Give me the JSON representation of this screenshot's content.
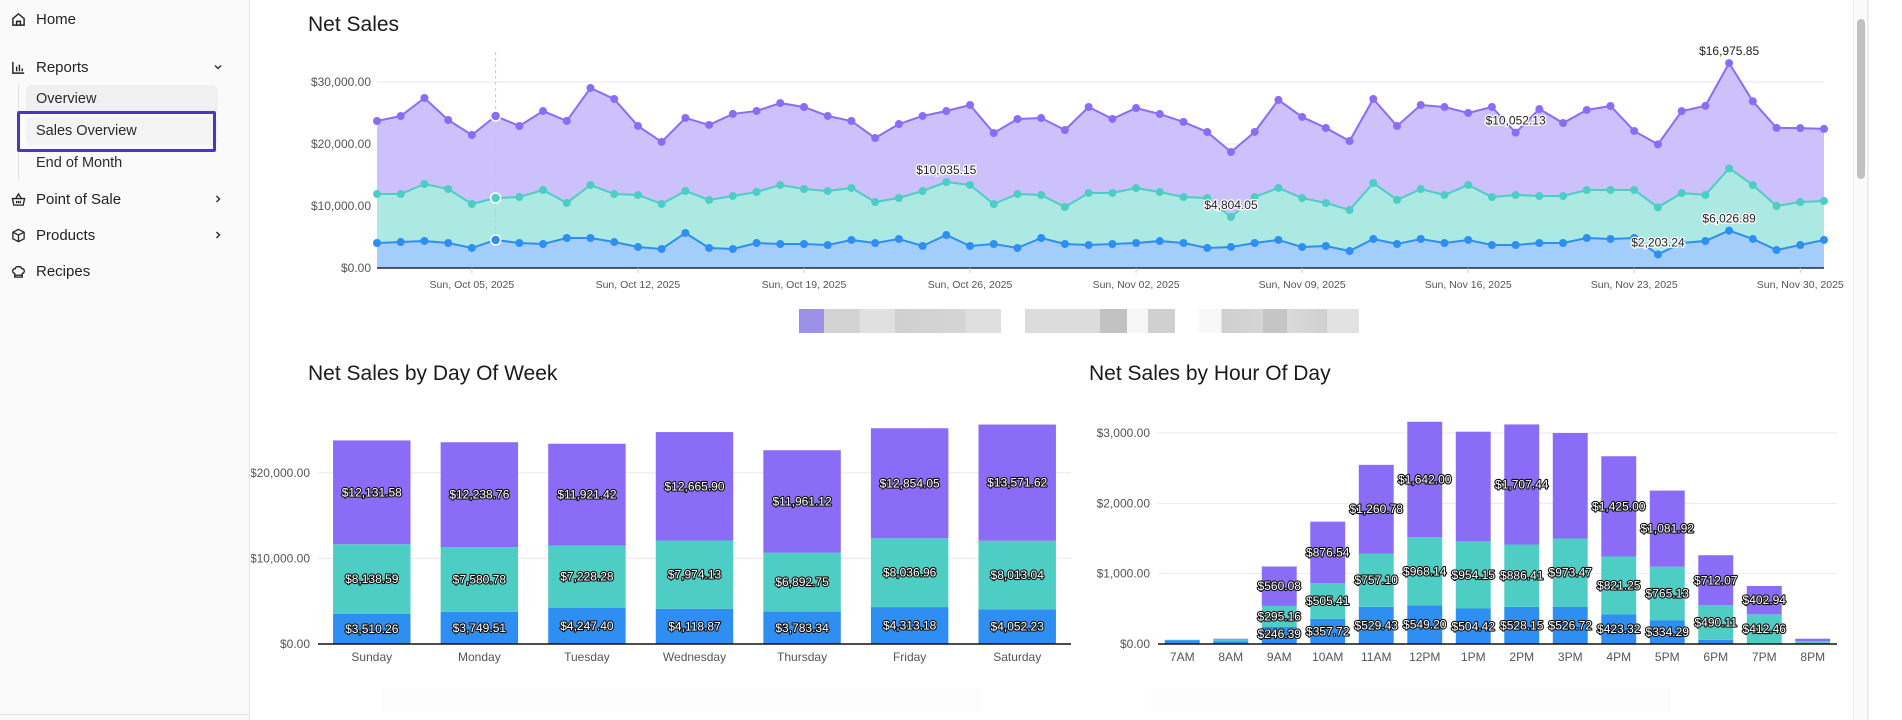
{
  "sidebar": {
    "items": [
      {
        "label": "Home",
        "icon": "home-icon"
      },
      {
        "label": "Reports",
        "icon": "bar-chart-icon",
        "expanded": true,
        "children": [
          {
            "label": "Overview"
          },
          {
            "label": "Sales Overview",
            "active": true
          },
          {
            "label": "End of Month"
          }
        ]
      },
      {
        "label": "Point of Sale",
        "icon": "basket-icon"
      },
      {
        "label": "Products",
        "icon": "box-icon"
      },
      {
        "label": "Recipes",
        "icon": "chef-hat-icon"
      }
    ]
  },
  "colors": {
    "purple": "#8b6cf6",
    "purple_fill": "#cdc1fb",
    "teal": "#4ecdc4",
    "teal_fill": "#ace9e3",
    "blue": "#2f8ef2",
    "blue_fill": "#a3cdfa",
    "highlight": "#4a35c4"
  },
  "chart_data": [
    {
      "id": "net-sales",
      "type": "area",
      "stacked": true,
      "title": "Net Sales",
      "xlabel": "",
      "ylabel": "",
      "ylim": [
        0,
        35000
      ],
      "yticks": [
        "$0.00",
        "$10,000.00",
        "$20,000.00",
        "$30,000.00"
      ],
      "ytick_values": [
        0,
        10000,
        20000,
        30000
      ],
      "xticks": [
        "Sun, Oct 05, 2025",
        "Sun, Oct 12, 2025",
        "Sun, Oct 19, 2025",
        "Sun, Oct 26, 2025",
        "Sun, Nov 02, 2025",
        "Sun, Nov 09, 2025",
        "Sun, Nov 16, 2025",
        "Sun, Nov 23, 2025",
        "Sun, Nov 30, 2025"
      ],
      "xtick_index": [
        4,
        11,
        18,
        25,
        32,
        39,
        46,
        53,
        60
      ],
      "x_start": "2025-10-01",
      "x_end": "2025-12-01",
      "grid": true,
      "hover_index": 5,
      "series": [
        {
          "name": "Series 1",
          "color": "blue",
          "values": [
            4030,
            4190,
            4360,
            4030,
            3230,
            4520,
            4030,
            3870,
            4840,
            4840,
            4190,
            3390,
            3070,
            5650,
            3230,
            3070,
            4030,
            3870,
            3870,
            3710,
            4520,
            4030,
            4680,
            3550,
            5320,
            3550,
            3870,
            3230,
            4840,
            3870,
            3710,
            3870,
            4030,
            4350,
            4030,
            3230,
            3390,
            4030,
            4520,
            3390,
            3550,
            2740,
            4680,
            3870,
            4680,
            4030,
            4520,
            3710,
            3710,
            4030,
            4030,
            4840,
            4680,
            4840,
            2200,
            4030,
            4360,
            6030,
            4680,
            2900,
            3710,
            4520
          ]
        },
        {
          "name": "Series 2",
          "color": "teal",
          "values": [
            7900,
            7740,
            9190,
            8710,
            7090,
            6770,
            7420,
            8710,
            5650,
            8550,
            7740,
            8390,
            7260,
            6770,
            7740,
            8550,
            8230,
            9510,
            8870,
            8710,
            8390,
            6610,
            6610,
            8870,
            8550,
            9840,
            6450,
            8710,
            6940,
            5970,
            8390,
            8230,
            8870,
            7900,
            7420,
            8070,
            4840,
            7420,
            8390,
            7900,
            6940,
            6610,
            9030,
            7100,
            8060,
            7740,
            8870,
            7740,
            8060,
            7580,
            7580,
            7740,
            7900,
            7740,
            7580,
            8060,
            7420,
            10040,
            8710,
            7100,
            6930,
            6290
          ]
        },
        {
          "name": "Series 3",
          "color": "purple",
          "values": [
            11780,
            12580,
            13870,
            11130,
            11130,
            13220,
            11450,
            12740,
            13230,
            15650,
            15320,
            11130,
            10000,
            11780,
            12100,
            13230,
            13070,
            13220,
            13230,
            12100,
            10800,
            10320,
            11930,
            12100,
            11450,
            12900,
            11450,
            12090,
            12410,
            12410,
            13870,
            11940,
            12900,
            12580,
            12110,
            10630,
            10480,
            10490,
            14200,
            13070,
            12100,
            11130,
            13550,
            11930,
            13550,
            14190,
            11620,
            14520,
            10060,
            14030,
            11770,
            12910,
            13550,
            9520,
            10160,
            13210,
            14370,
            16980,
            13500,
            12600,
            11930,
            11620
          ]
        }
      ],
      "data_labels": [
        {
          "series": "Series 2",
          "index": 24,
          "text": "$10,035.15"
        },
        {
          "series": "Series 2",
          "index": 36,
          "text": "$4,804.05"
        },
        {
          "series": "Series 3",
          "index": 48,
          "text": "$10,052.13"
        },
        {
          "series": "Series 1",
          "index": 54,
          "text": "$2,203.24"
        },
        {
          "series": "Series 3",
          "index": 57,
          "text": "$16,975.85"
        },
        {
          "series": "Series 1",
          "index": 57,
          "text": "$6,026.89"
        }
      ],
      "legend": {
        "placement": "bottom-center",
        "redacted": true
      }
    },
    {
      "id": "net-sales-by-day-of-week",
      "type": "bar",
      "stacked": true,
      "title": "Net Sales by Day Of Week",
      "xlabel": "",
      "ylabel": "",
      "ylim": [
        0,
        25000
      ],
      "yticks": [
        "$0.00",
        "$10,000.00",
        "$20,000.00"
      ],
      "ytick_values": [
        0,
        10000,
        20000
      ],
      "categories": [
        "Sunday",
        "Monday",
        "Tuesday",
        "Wednesday",
        "Thursday",
        "Friday",
        "Saturday"
      ],
      "grid": true,
      "series": [
        {
          "name": "Series 1",
          "color": "blue",
          "values": [
            3510.26,
            3749.51,
            4247.4,
            4118.87,
            3783.34,
            4313.18,
            4052.23
          ],
          "labels": [
            "$3,510.26",
            "$3,749.51",
            "$4,247.40",
            "$4,118.87",
            "$3,783.34",
            "$4,313.18",
            "$4,052.23"
          ]
        },
        {
          "name": "Series 2",
          "color": "teal",
          "values": [
            8138.59,
            7580.78,
            7228.28,
            7974.13,
            6892.75,
            8036.96,
            8013.04
          ],
          "labels": [
            "$8,138.59",
            "$7,580.78",
            "$7,228.28",
            "$7,974.13",
            "$6,892.75",
            "$8,036.96",
            "$8,013.04"
          ]
        },
        {
          "name": "Series 3",
          "color": "purple",
          "values": [
            12131.58,
            12238.76,
            11921.42,
            12665.9,
            11961.12,
            12854.05,
            13571.62
          ],
          "labels": [
            "$12,131.58",
            "$12,238.76",
            "$11,921.42",
            "$12,665.90",
            "$11,961.12",
            "$12,854.05",
            "$13,571.62"
          ]
        }
      ],
      "legend": {
        "placement": "bottom-center",
        "redacted": true
      }
    },
    {
      "id": "net-sales-by-hour-of-day",
      "type": "bar",
      "stacked": true,
      "title": "Net Sales by Hour Of Day",
      "xlabel": "",
      "ylabel": "",
      "ylim": [
        0,
        3100
      ],
      "yticks": [
        "$0.00",
        "$1,000.00",
        "$2,000.00",
        "$3,000.00"
      ],
      "ytick_values": [
        0,
        1000,
        2000,
        3000
      ],
      "categories": [
        "7AM",
        "8AM",
        "9AM",
        "10AM",
        "11AM",
        "12PM",
        "1PM",
        "2PM",
        "3PM",
        "4PM",
        "5PM",
        "6PM",
        "7PM",
        "8PM"
      ],
      "grid": true,
      "series": [
        {
          "name": "Series 1",
          "color": "blue",
          "values": [
            55,
            40,
            246.39,
            357.72,
            529.43,
            549.2,
            504.42,
            528.15,
            526.72,
            423.32,
            334.29,
            60,
            10,
            5
          ],
          "labels": [
            "",
            "",
            "$246.39",
            "$357.72",
            "$529.43",
            "$549.20",
            "$504.42",
            "$528.15",
            "$526.72",
            "$423.32",
            "$334.29",
            "",
            "",
            ""
          ]
        },
        {
          "name": "Series 2",
          "color": "teal",
          "values": [
            5,
            25,
            295.16,
            505.41,
            757.1,
            968.14,
            954.15,
            886.41,
            973.47,
            821.25,
            765.13,
            490.11,
            412.46,
            35
          ],
          "labels": [
            "",
            "",
            "$295.16",
            "$505.41",
            "$757.10",
            "$968.14",
            "$954.15",
            "$886.41",
            "$973.47",
            "$821.25",
            "$765.13",
            "$490.11",
            "$412.46",
            ""
          ]
        },
        {
          "name": "Series 3",
          "color": "purple",
          "values": [
            0,
            10,
            560.08,
            876.54,
            1260.78,
            1642.0,
            1560,
            1707.44,
            1500,
            1425.0,
            1081.92,
            712.07,
            402.94,
            35
          ],
          "labels": [
            "",
            "",
            "$560.08",
            "$876.54",
            "$1,260.78",
            "$1,642.00",
            "",
            "$1,707.44",
            "",
            "$1,425.00",
            "$1,081.92",
            "$712.07",
            "$402.94",
            ""
          ]
        }
      ],
      "legend": {
        "placement": "bottom-center",
        "redacted": true
      }
    }
  ]
}
